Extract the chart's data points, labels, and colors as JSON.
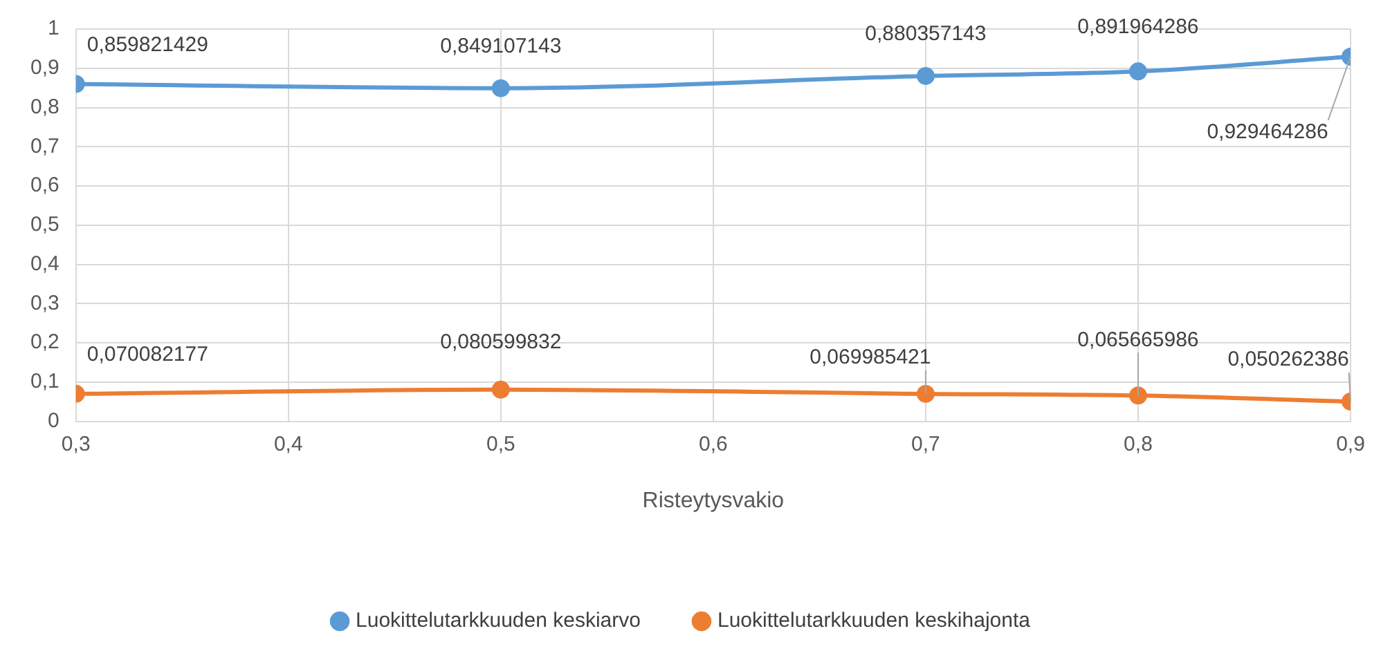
{
  "chart_data": {
    "type": "line",
    "xlabel": "Risteytysvakio",
    "x": [
      0.3,
      0.5,
      0.7,
      0.8,
      0.9
    ],
    "xlim": [
      0.3,
      0.9
    ],
    "xticks": [
      {
        "value": 0.3,
        "label": "0,3"
      },
      {
        "value": 0.4,
        "label": "0,4"
      },
      {
        "value": 0.5,
        "label": "0,5"
      },
      {
        "value": 0.6,
        "label": "0,6"
      },
      {
        "value": 0.7,
        "label": "0,7"
      },
      {
        "value": 0.8,
        "label": "0,8"
      },
      {
        "value": 0.9,
        "label": "0,9"
      }
    ],
    "ylim": [
      0,
      1
    ],
    "yticks": [
      0,
      {
        "value": 0.1,
        "label": "0,1"
      },
      {
        "value": 0.2,
        "label": "0,2"
      },
      {
        "value": 0.3,
        "label": "0,3"
      },
      {
        "value": 0.4,
        "label": "0,4"
      },
      {
        "value": 0.5,
        "label": "0,5"
      },
      {
        "value": 0.6,
        "label": "0,6"
      },
      {
        "value": 0.7,
        "label": "0,7"
      },
      {
        "value": 0.8,
        "label": "0,8"
      },
      {
        "value": 0.9,
        "label": "0,9"
      },
      1
    ],
    "series": [
      {
        "name": "Luokittelutarkkuuden keskiarvo",
        "color": "#5b9bd5",
        "values": [
          0.859821429,
          0.849107143,
          0.880357143,
          0.891964286,
          0.929464286
        ],
        "value_labels": [
          "0,859821429",
          "0,849107143",
          "0,880357143",
          "0,891964286",
          "0,929464286"
        ]
      },
      {
        "name": "Luokittelutarkkuuden keskihajonta",
        "color": "#ed7d31",
        "values": [
          0.070082177,
          0.080599832,
          0.069985421,
          0.065665986,
          0.050262386
        ],
        "value_labels": [
          "0,070082177",
          "0,080599832",
          "0,069985421",
          "0,065665986",
          "0,050262386"
        ]
      }
    ],
    "grid": true,
    "legend": "bottom",
    "marker": "circle",
    "line_style": "solid"
  }
}
